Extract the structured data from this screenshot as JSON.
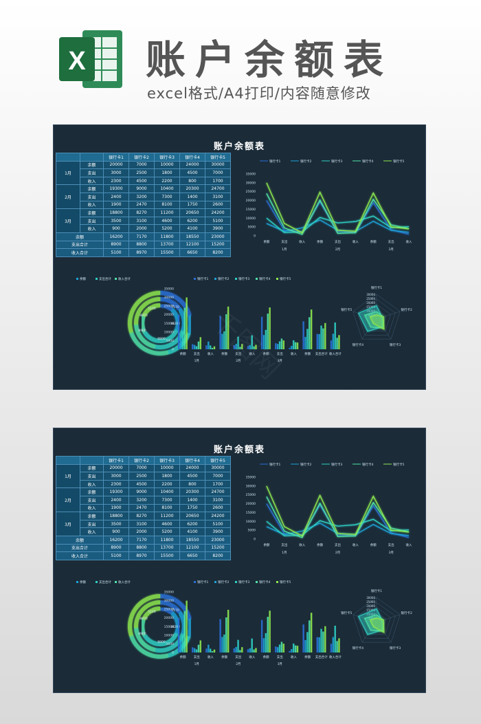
{
  "header": {
    "title": "账户余额表",
    "subtitle": "excel格式/A4打印/内容随意修改",
    "logo_letter": "X"
  },
  "sheet": {
    "title": "账户余额表",
    "columns": [
      "银行卡1",
      "银行卡2",
      "银行卡3",
      "银行卡4",
      "银行卡5"
    ],
    "groups": [
      {
        "label": "1月",
        "rows": [
          {
            "label": "余额",
            "values": [
              "20000",
              "7000",
              "10000",
              "24000",
              "30000"
            ]
          },
          {
            "label": "支出",
            "values": [
              "3000",
              "2500",
              "1800",
              "4500",
              "7000"
            ]
          },
          {
            "label": "收入",
            "values": [
              "2300",
              "4500",
              "2200",
              "800",
              "1700"
            ]
          }
        ]
      },
      {
        "label": "2月",
        "rows": [
          {
            "label": "余额",
            "values": [
              "19300",
              "9000",
              "10400",
              "20300",
              "24700"
            ]
          },
          {
            "label": "支出",
            "values": [
              "2400",
              "3200",
              "7300",
              "1400",
              "3100"
            ]
          },
          {
            "label": "收入",
            "values": [
              "1900",
              "2470",
              "8100",
              "1750",
              "2600"
            ]
          }
        ]
      },
      {
        "label": "3月",
        "rows": [
          {
            "label": "余额",
            "values": [
              "18800",
              "8270",
              "11200",
              "20650",
              "24200"
            ]
          },
          {
            "label": "支出",
            "values": [
              "3500",
              "3100",
              "4600",
              "6200",
              "5100"
            ]
          },
          {
            "label": "收入",
            "values": [
              "900",
              "2000",
              "5200",
              "4100",
              "3900"
            ]
          }
        ]
      }
    ],
    "totals": [
      {
        "label": "余额",
        "values": [
          "16200",
          "7170",
          "11800",
          "18550",
          "23000"
        ]
      },
      {
        "label": "支出合计",
        "values": [
          "8900",
          "8800",
          "13700",
          "12100",
          "15200"
        ]
      },
      {
        "label": "收入合计",
        "values": [
          "5100",
          "8970",
          "15500",
          "6650",
          "8200"
        ]
      }
    ],
    "line_legend": [
      "银行卡1",
      "银行卡2",
      "银行卡3",
      "银行卡4",
      "银行卡5"
    ],
    "donut_legend": [
      "余额",
      "支出合计",
      "收入合计"
    ],
    "bar_legend": [
      "银行卡1",
      "银行卡2",
      "银行卡3",
      "银行卡4",
      "银行卡5"
    ],
    "donut_labels": [
      "5100",
      "7170",
      "16200",
      "8970",
      "8800",
      "8900"
    ],
    "radar_axes": [
      "银行卡1",
      "银行卡2",
      "银行卡3",
      "银行卡4",
      "银行卡5"
    ],
    "radar_ticks": [
      "30000",
      "25000",
      "20000",
      "15000",
      "10000",
      "5000"
    ]
  },
  "watermark": "千图网",
  "colors": {
    "series": [
      "#2a6fd6",
      "#1ea3d8",
      "#2fd0c4",
      "#4fe3a8",
      "#8ee84f"
    ],
    "sheet_bg": "#1b2b38"
  },
  "chart_data": [
    {
      "type": "line",
      "categories": [
        "余额",
        "支出",
        "收入",
        "余额",
        "支出",
        "收入",
        "余额",
        "支出",
        "收入"
      ],
      "groups": [
        "1月",
        "2月",
        "3月"
      ],
      "ylim": [
        0,
        35000
      ],
      "yticks": [
        0,
        5000,
        10000,
        15000,
        20000,
        25000,
        30000,
        35000
      ],
      "series": [
        {
          "name": "银行卡1",
          "values": [
            20000,
            3000,
            2300,
            19300,
            2400,
            1900,
            18800,
            3500,
            900
          ]
        },
        {
          "name": "银行卡2",
          "values": [
            7000,
            2500,
            4500,
            9000,
            3200,
            2470,
            8270,
            3100,
            2000
          ]
        },
        {
          "name": "银行卡3",
          "values": [
            10000,
            1800,
            2200,
            10400,
            7300,
            8100,
            11200,
            4600,
            5200
          ]
        },
        {
          "name": "银行卡4",
          "values": [
            24000,
            4500,
            800,
            20300,
            1400,
            1750,
            20650,
            6200,
            4100
          ]
        },
        {
          "name": "银行卡5",
          "values": [
            30000,
            7000,
            1700,
            24700,
            3100,
            2600,
            24200,
            5100,
            3900
          ]
        }
      ]
    },
    {
      "type": "pie",
      "series": [
        {
          "name": "余额",
          "values": [
            16200,
            7170,
            11800,
            18550,
            23000
          ]
        },
        {
          "name": "支出合计",
          "values": [
            8900,
            8800,
            13700,
            12100,
            15200
          ]
        },
        {
          "name": "收入合计",
          "values": [
            5100,
            8970,
            15500,
            6650,
            8200
          ]
        }
      ]
    },
    {
      "type": "bar",
      "categories": [
        "余额",
        "支出",
        "收入",
        "余额",
        "支出",
        "收入",
        "余额",
        "支出",
        "收入",
        "余额",
        "支出合计",
        "收入合计"
      ],
      "groups": [
        "1月",
        "2月",
        "3月"
      ],
      "ylim": [
        0,
        35000
      ],
      "yticks": [
        0,
        5000,
        10000,
        15000,
        20000,
        25000,
        30000,
        35000
      ],
      "series": [
        {
          "name": "银行卡1",
          "values": [
            20000,
            3000,
            2300,
            19300,
            2400,
            1900,
            18800,
            3500,
            900,
            16200,
            8900,
            5100
          ]
        },
        {
          "name": "银行卡2",
          "values": [
            7000,
            2500,
            4500,
            9000,
            3200,
            2470,
            8270,
            3100,
            2000,
            7170,
            8800,
            8970
          ]
        },
        {
          "name": "银行卡3",
          "values": [
            10000,
            1800,
            2200,
            10400,
            7300,
            8100,
            11200,
            4600,
            5200,
            11800,
            13700,
            15500
          ]
        },
        {
          "name": "银行卡4",
          "values": [
            24000,
            4500,
            800,
            20300,
            1400,
            1750,
            20650,
            6200,
            4100,
            18550,
            12100,
            6650
          ]
        },
        {
          "name": "银行卡5",
          "values": [
            30000,
            7000,
            1700,
            24700,
            3100,
            2600,
            24200,
            5100,
            3900,
            23000,
            15200,
            8200
          ]
        }
      ]
    },
    {
      "type": "radar",
      "axes": [
        "银行卡1",
        "银行卡2",
        "银行卡3",
        "银行卡4",
        "银行卡5"
      ],
      "rlim": [
        0,
        30000
      ],
      "series": [
        {
          "name": "余额",
          "values": [
            16200,
            7170,
            11800,
            18550,
            23000
          ]
        },
        {
          "name": "支出合计",
          "values": [
            8900,
            8800,
            13700,
            12100,
            15200
          ]
        },
        {
          "name": "收入合计",
          "values": [
            5100,
            8970,
            15500,
            6650,
            8200
          ]
        }
      ]
    }
  ]
}
